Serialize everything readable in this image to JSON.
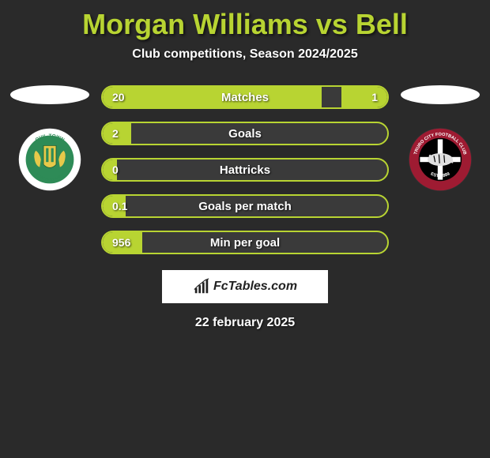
{
  "title": "Morgan Williams vs Bell",
  "subtitle": "Club competitions, Season 2024/2025",
  "date": "22 february 2025",
  "brand": "FcTables.com",
  "colors": {
    "accent": "#b8d432",
    "bar_bg": "#3a3a3a",
    "text": "#ffffff",
    "brand_box_bg": "#ffffff",
    "brand_text": "#222222",
    "page_bg": "#2a2a2a"
  },
  "crest_left": {
    "ring_text_top": "OVIL TOWN",
    "motto": "ACHIEVE BY UNITY",
    "ring_color": "#ffffff",
    "shield_color": "#2e8b57",
    "lion_color": "#e6c94a"
  },
  "crest_right": {
    "ring_text_top": "TRURO CITY FOOTBALL CLUB",
    "est": "EST. 1889",
    "ring_color": "#9e1b32",
    "inner_bg": "#000000",
    "cross_color": "#ffffff",
    "tiger_color": "#e0e0e0"
  },
  "bars": [
    {
      "label": "Matches",
      "left_value": "20",
      "right_value": "1",
      "left_pct": 77,
      "right_pct": 16
    },
    {
      "label": "Goals",
      "left_value": "2",
      "right_value": "",
      "left_pct": 10,
      "right_pct": 0
    },
    {
      "label": "Hattricks",
      "left_value": "0",
      "right_value": "",
      "left_pct": 5,
      "right_pct": 0
    },
    {
      "label": "Goals per match",
      "left_value": "0.1",
      "right_value": "",
      "left_pct": 8,
      "right_pct": 0
    },
    {
      "label": "Min per goal",
      "left_value": "956",
      "right_value": "",
      "left_pct": 14,
      "right_pct": 0
    }
  ]
}
